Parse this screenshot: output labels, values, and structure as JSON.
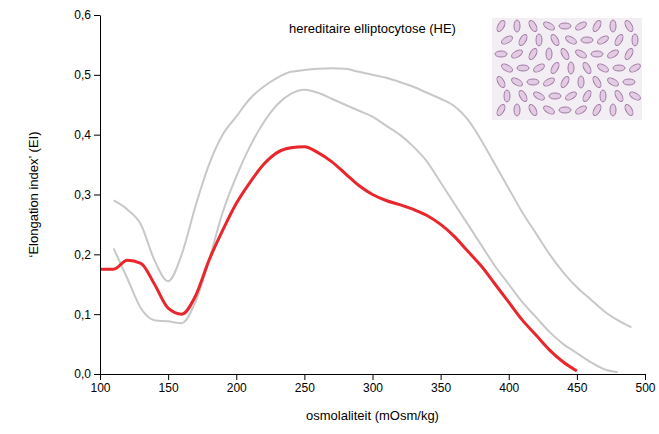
{
  "chart_data": {
    "type": "line",
    "title": "hereditaire elliptocytose (HE)",
    "x_label": "osmolaliteit (mOsm/kg)",
    "y_label": "‘Elongation index’ (EI)",
    "x": [
      100,
      110,
      120,
      130,
      140,
      150,
      160,
      170,
      180,
      190,
      200,
      210,
      220,
      230,
      240,
      250,
      260,
      270,
      280,
      290,
      300,
      310,
      320,
      330,
      340,
      350,
      360,
      370,
      380,
      390,
      400,
      410,
      420,
      430,
      440,
      450,
      460,
      470,
      480,
      490
    ],
    "series": [
      {
        "color": "#c8c8c8",
        "values": [
          null,
          0.29,
          0.275,
          0.25,
          0.19,
          0.155,
          0.2,
          0.28,
          0.35,
          0.4,
          0.43,
          0.46,
          0.48,
          0.495,
          0.505,
          0.508,
          0.51,
          0.511,
          0.51,
          0.505,
          0.5,
          0.495,
          0.488,
          0.48,
          0.47,
          0.46,
          0.448,
          0.425,
          0.39,
          0.35,
          0.31,
          0.27,
          0.235,
          0.2,
          0.17,
          0.145,
          0.125,
          0.105,
          0.09,
          0.078
        ]
      },
      {
        "color": "#c8c8c8",
        "values": [
          null,
          0.21,
          0.16,
          0.11,
          0.09,
          0.088,
          0.085,
          0.12,
          0.19,
          0.27,
          0.33,
          0.38,
          0.42,
          0.45,
          0.468,
          0.475,
          0.47,
          0.46,
          0.45,
          0.44,
          0.43,
          0.415,
          0.4,
          0.38,
          0.355,
          0.32,
          0.285,
          0.25,
          0.215,
          0.18,
          0.15,
          0.12,
          0.095,
          0.07,
          0.05,
          0.035,
          0.02,
          0.008,
          0.003,
          null
        ]
      },
      {
        "color": "#e8262b",
        "values": [
          0.175,
          0.175,
          0.19,
          0.185,
          0.15,
          0.11,
          0.1,
          0.13,
          0.19,
          0.24,
          0.285,
          0.32,
          0.35,
          0.37,
          0.378,
          0.38,
          0.37,
          0.355,
          0.335,
          0.315,
          0.3,
          0.29,
          0.283,
          0.275,
          0.265,
          0.25,
          0.23,
          0.205,
          0.18,
          0.15,
          0.12,
          0.09,
          0.065,
          0.04,
          0.02,
          0.005,
          null,
          null,
          null,
          null
        ]
      }
    ],
    "xlim": [
      100,
      500
    ],
    "xticks": [
      100,
      150,
      200,
      250,
      300,
      350,
      400,
      450,
      500
    ],
    "ylim": [
      0,
      0.6
    ],
    "yticks": [
      {
        "value": 0,
        "label": "0,0"
      },
      {
        "value": 0.1,
        "label": "0,1"
      },
      {
        "value": 0.2,
        "label": "0,2"
      },
      {
        "value": 0.3,
        "label": "0,3"
      },
      {
        "value": 0.4,
        "label": "0,4"
      },
      {
        "value": 0.5,
        "label": "0,5"
      },
      {
        "value": 0.6,
        "label": "0,6"
      }
    ],
    "grid": false
  }
}
